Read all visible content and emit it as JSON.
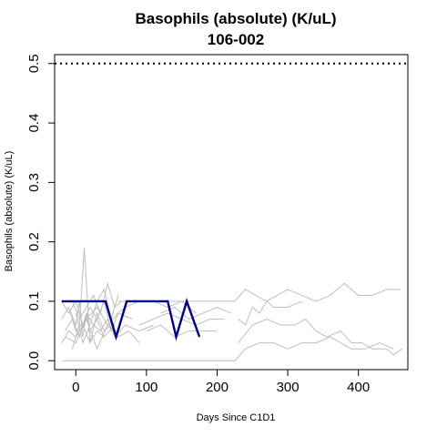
{
  "chart_data": {
    "type": "line",
    "title": "Basophils (absolute) (K/uL)",
    "subtitle": "106-002",
    "xlabel": "Days Since C1D1",
    "ylabel": "Basophils (absolute) (K/uL)",
    "xlim": [
      -30,
      470
    ],
    "ylim": [
      -0.015,
      0.515
    ],
    "xticks": [
      0,
      100,
      200,
      300,
      400
    ],
    "xtick_labels": [
      "0",
      "100",
      "200",
      "300",
      "400"
    ],
    "yticks": [
      0.0,
      0.1,
      0.2,
      0.3,
      0.4,
      0.5
    ],
    "ytick_labels": [
      "0.0",
      "0.1",
      "0.2",
      "0.3",
      "0.4",
      "0.5"
    ],
    "reference_line": {
      "y": 0.5,
      "style": "dotted",
      "color": "#000000"
    },
    "colors": {
      "highlight": "#000080",
      "background": "#bebebe"
    },
    "highlight_series": {
      "name": "106-002",
      "x": [
        -20,
        0,
        15,
        30,
        42,
        57,
        72,
        90,
        110,
        130,
        142,
        157,
        175
      ],
      "y": [
        0.1,
        0.1,
        0.1,
        0.1,
        0.1,
        0.04,
        0.1,
        0.1,
        0.1,
        0.1,
        0.04,
        0.1,
        0.04
      ]
    },
    "background_series": [
      {
        "x": [
          -20,
          -10,
          0,
          10,
          20,
          30,
          40,
          50,
          60,
          70,
          90,
          110,
          130,
          150,
          170
        ],
        "y": [
          0.1,
          0.08,
          0.1,
          0.06,
          0.09,
          0.07,
          0.1,
          0.05,
          0.08,
          0.09,
          0.1,
          0.1,
          0.09,
          0.1,
          0.08
        ]
      },
      {
        "x": [
          -15,
          -5,
          5,
          15,
          25,
          35,
          45,
          55,
          70,
          90,
          110
        ],
        "y": [
          0.05,
          0.07,
          0.04,
          0.08,
          0.06,
          0.05,
          0.07,
          0.04,
          0.06,
          0.05,
          0.06
        ]
      },
      {
        "x": [
          -20,
          -10,
          0,
          10,
          20,
          30,
          40,
          55
        ],
        "y": [
          0.03,
          0.05,
          0.04,
          0.06,
          0.03,
          0.05,
          0.04,
          0.06
        ]
      },
      {
        "x": [
          -10,
          0,
          5,
          10,
          15,
          20,
          30,
          40
        ],
        "y": [
          0.09,
          0.06,
          0.1,
          0.04,
          0.08,
          0.05,
          0.07,
          0.04
        ]
      },
      {
        "x": [
          -5,
          5,
          12,
          20,
          30,
          40,
          50
        ],
        "y": [
          0.02,
          0.06,
          0.19,
          0.03,
          0.08,
          0.05,
          0.06
        ]
      },
      {
        "x": [
          0,
          10,
          20,
          30,
          40,
          50,
          60
        ],
        "y": [
          0.08,
          0.03,
          0.06,
          0.1,
          0.12,
          0.07,
          0.11
        ]
      },
      {
        "x": [
          -20,
          -10,
          0,
          15,
          30,
          45,
          60,
          80
        ],
        "y": [
          0.07,
          0.09,
          0.05,
          0.07,
          0.09,
          0.06,
          0.08,
          0.07
        ]
      },
      {
        "x": [
          -15,
          0,
          15,
          30,
          45,
          60,
          75,
          90
        ],
        "y": [
          0.04,
          0.03,
          0.07,
          0.02,
          0.06,
          0.04,
          0.05,
          0.03
        ]
      },
      {
        "x": [
          -5,
          5,
          15,
          25,
          35,
          45,
          55,
          65
        ],
        "y": [
          0.1,
          0.07,
          0.09,
          0.11,
          0.08,
          0.13,
          0.09,
          0.1
        ]
      },
      {
        "x": [
          -20,
          0,
          20,
          40,
          60,
          90,
          120,
          150,
          180,
          210,
          225,
          240,
          260,
          280,
          300,
          320,
          340,
          360,
          375,
          390,
          410,
          430,
          450
        ],
        "y": [
          0.0,
          0.0,
          0.0,
          0.0,
          0.0,
          0.0,
          0.0,
          0.0,
          0.0,
          0.0,
          0.0,
          0.02,
          0.03,
          0.03,
          0.02,
          0.03,
          0.03,
          0.04,
          0.03,
          0.02,
          0.02,
          0.03,
          0.02
        ]
      },
      {
        "x": [
          60,
          90,
          120,
          150,
          180,
          210,
          225,
          240,
          255,
          270,
          285,
          300,
          320,
          340,
          360,
          380,
          400,
          420,
          440,
          460
        ],
        "y": [
          0.1,
          0.1,
          0.1,
          0.1,
          0.1,
          0.1,
          0.1,
          0.12,
          0.11,
          0.1,
          0.11,
          0.12,
          0.11,
          0.1,
          0.11,
          0.13,
          0.11,
          0.11,
          0.12,
          0.12
        ]
      },
      {
        "x": [
          230,
          250,
          270,
          290,
          310,
          325,
          340,
          355,
          375,
          390,
          405,
          420,
          440,
          450,
          462
        ],
        "y": [
          0.03,
          0.06,
          0.07,
          0.06,
          0.06,
          0.07,
          0.05,
          0.04,
          0.05,
          0.03,
          0.03,
          0.02,
          0.02,
          0.01,
          0.02
        ]
      },
      {
        "x": [
          230,
          240,
          250,
          260,
          270,
          280,
          300,
          320
        ],
        "y": [
          0.07,
          0.06,
          0.09,
          0.08,
          0.1,
          0.09,
          0.09,
          0.1
        ]
      },
      {
        "x": [
          90,
          110,
          130,
          150,
          170,
          190,
          210
        ],
        "y": [
          0.06,
          0.07,
          0.08,
          0.07,
          0.06,
          0.07,
          0.07
        ]
      },
      {
        "x": [
          100,
          120,
          140,
          160,
          180,
          200
        ],
        "y": [
          0.05,
          0.06,
          0.04,
          0.05,
          0.05,
          0.05
        ]
      },
      {
        "x": [
          120,
          140,
          160,
          180,
          200,
          220
        ],
        "y": [
          0.08,
          0.09,
          0.07,
          0.08,
          0.09,
          0.08
        ]
      }
    ]
  }
}
